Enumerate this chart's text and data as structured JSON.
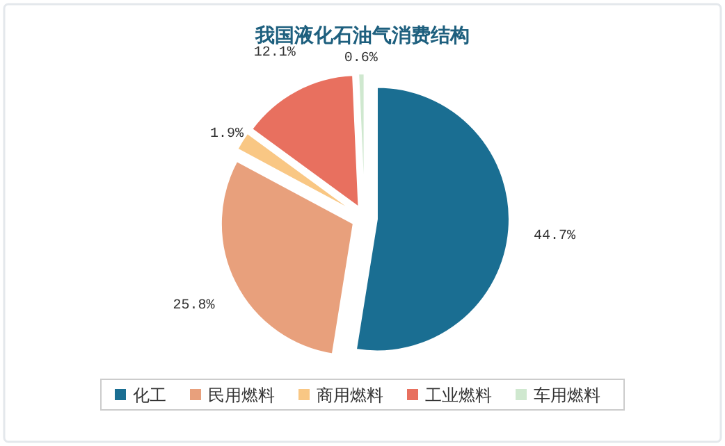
{
  "chart_data": {
    "type": "pie",
    "title": "我国液化石油气消费结构",
    "categories": [
      "化工",
      "民用燃料",
      "商用燃料",
      "工业燃料",
      "车用燃料"
    ],
    "values": [
      44.7,
      25.8,
      1.9,
      12.1,
      0.6
    ],
    "colors": [
      "#1a6e92",
      "#e8a07c",
      "#f9c784",
      "#e8705f",
      "#cfe8cf"
    ],
    "value_labels": [
      "44.7%",
      "25.8%",
      "1.9%",
      "12.1%",
      "0.6%"
    ],
    "legend": "bottom"
  }
}
